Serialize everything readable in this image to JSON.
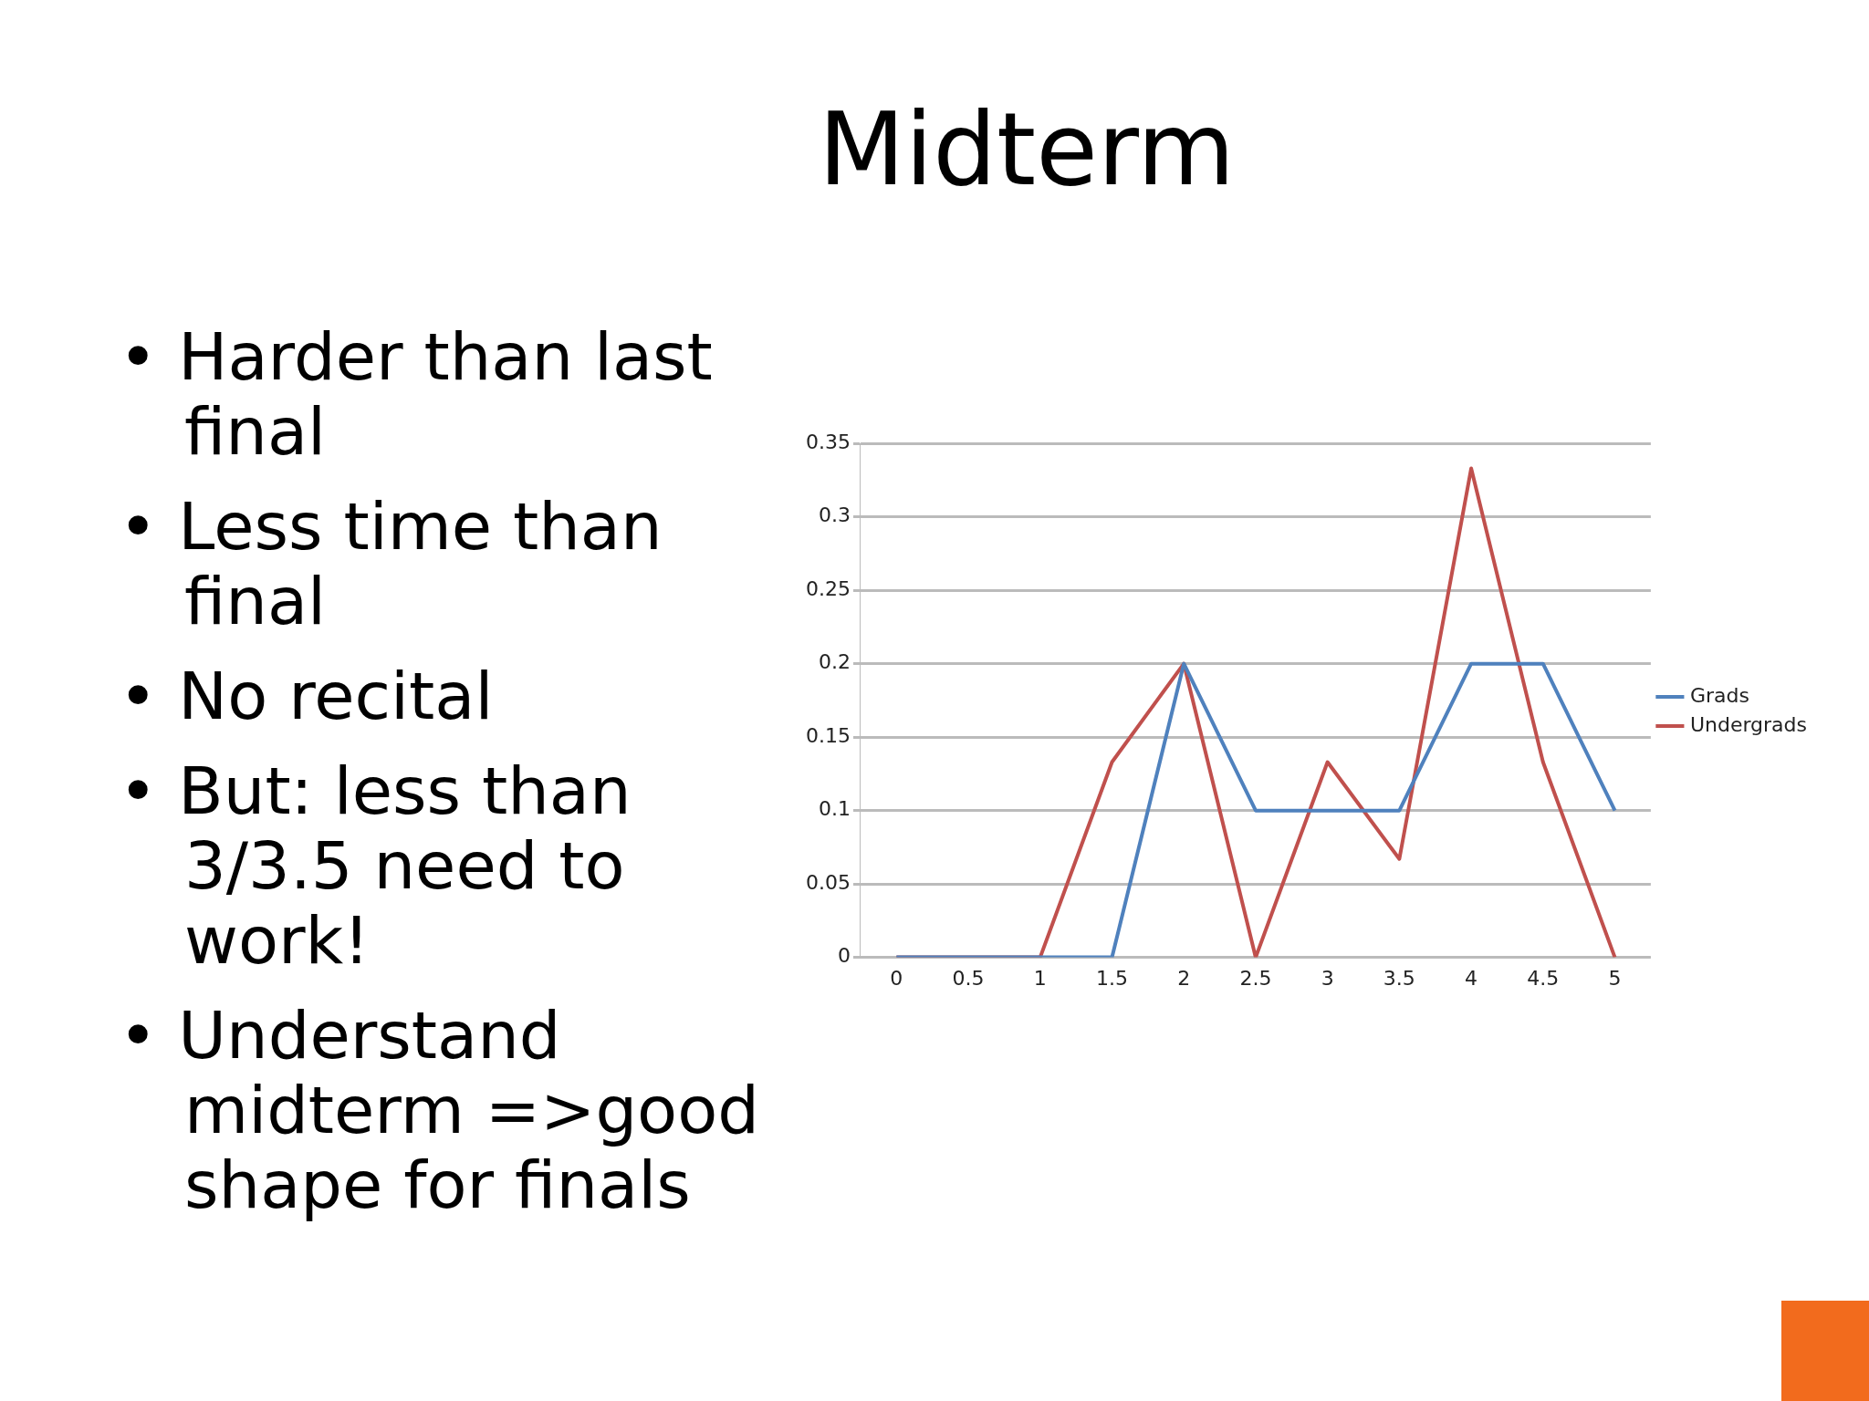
{
  "chart_data": {
    "type": "line",
    "title": "Midterm",
    "annotations": [
      "• Harder than last final",
      "• Less time than final",
      "• No recital",
      "• But: less than 3/3.5 need to work!",
      "• Understand midterm =>good shape for finals"
    ],
    "categories": [
      "0",
      "0.5",
      "1",
      "1.5",
      "2",
      "2.5",
      "3",
      "3.5",
      "4",
      "4.5",
      "5"
    ],
    "series": [
      {
        "name": "Grads",
        "color": "#4f81bd",
        "values": [
          0,
          0,
          0,
          0,
          0.2,
          0.1,
          0.1,
          0.1,
          0.2,
          0.2,
          0.1
        ]
      },
      {
        "name": "Undergrads",
        "color": "#c0504d",
        "values": [
          0,
          0,
          0,
          0.133,
          0.2,
          0,
          0.133,
          0.067,
          0.333,
          0.133,
          0
        ]
      }
    ],
    "ylim": [
      0,
      0.35
    ],
    "yticks": [
      0,
      0.05,
      0.1,
      0.15,
      0.2,
      0.25,
      0.3,
      0.35
    ],
    "grid": "y",
    "legend": "right",
    "marker": "none",
    "line_style": "solid"
  }
}
